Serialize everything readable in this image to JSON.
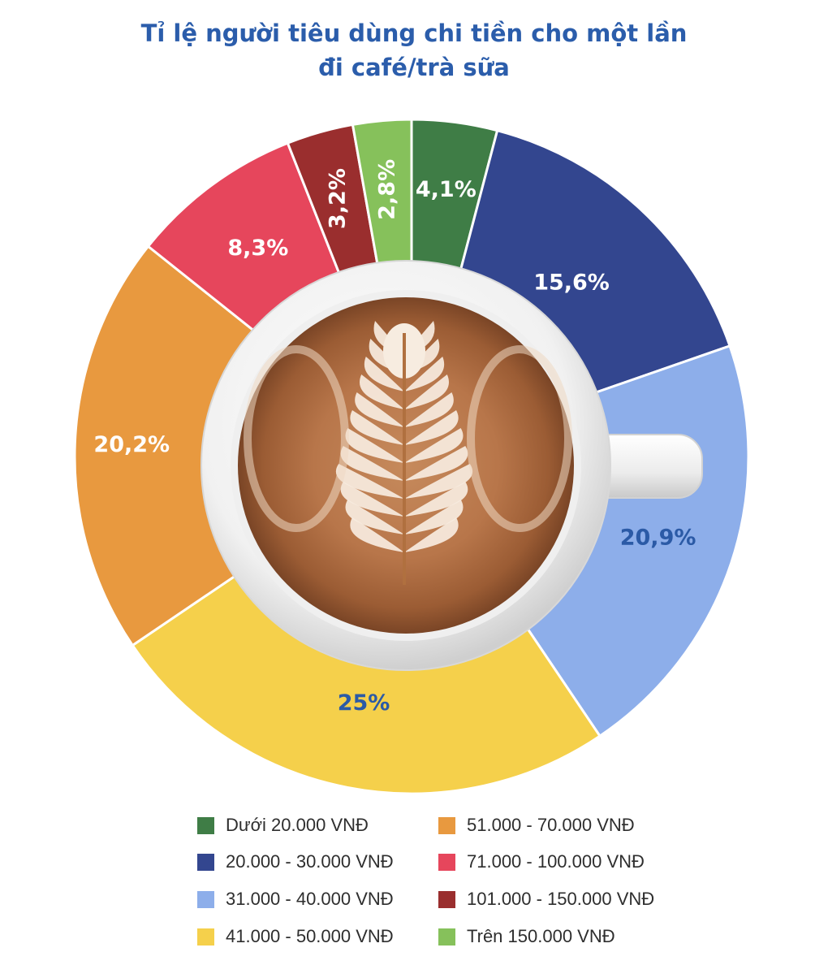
{
  "title": {
    "line1": "Tỉ lệ người tiêu dùng chi tiền cho một lần",
    "line2": "đi café/trà sữa"
  },
  "chart_data": {
    "type": "pie",
    "title": "Tỉ lệ người tiêu dùng chi tiền cho một lần đi café/trà sữa",
    "center_image": "latte-art-coffee-cup",
    "slices": [
      {
        "category": "Dưới 20.000 VNĐ",
        "value": 4.1,
        "label": "4,1%",
        "color": "#3f7d46",
        "label_color": "#ffffff"
      },
      {
        "category": "20.000 - 30.000 VNĐ",
        "value": 15.6,
        "label": "15,6%",
        "color": "#33468f",
        "label_color": "#ffffff"
      },
      {
        "category": "31.000 - 40.000 VNĐ",
        "value": 20.9,
        "label": "20,9%",
        "color": "#8daeea",
        "label_color": "#2b5aa6"
      },
      {
        "category": "41.000 - 50.000 VNĐ",
        "value": 25,
        "label": "25%",
        "color": "#f5d04b",
        "label_color": "#2b5aa6"
      },
      {
        "category": "51.000 - 70.000 VNĐ",
        "value": 20.2,
        "label": "20,2%",
        "color": "#e8993f",
        "label_color": "#ffffff"
      },
      {
        "category": "71.000 - 100.000 VNĐ",
        "value": 8.3,
        "label": "8,3%",
        "color": "#e6465c",
        "label_color": "#ffffff"
      },
      {
        "category": "101.000 - 150.000 VNĐ",
        "value": 3.2,
        "label": "3,2%",
        "color": "#9a2e2e",
        "label_color": "#ffffff"
      },
      {
        "category": "Trên 150.000 VNĐ",
        "value": 2.8,
        "label": "2,8%",
        "color": "#86c15b",
        "label_color": "#ffffff"
      }
    ],
    "legend": {
      "placement": "bottom",
      "columns": 2,
      "items": [
        {
          "label": "Dưới 20.000 VNĐ",
          "color": "#3f7d46"
        },
        {
          "label": "20.000 - 30.000 VNĐ",
          "color": "#33468f"
        },
        {
          "label": "31.000 - 40.000 VNĐ",
          "color": "#8daeea"
        },
        {
          "label": "41.000 - 50.000 VNĐ",
          "color": "#f5d04b"
        },
        {
          "label": "51.000 - 70.000 VNĐ",
          "color": "#e8993f"
        },
        {
          "label": "71.000 - 100.000 VNĐ",
          "color": "#e6465c"
        },
        {
          "label": "101.000 - 150.000 VNĐ",
          "color": "#9a2e2e"
        },
        {
          "label": "Trên 150.000 VNĐ",
          "color": "#86c15b"
        }
      ]
    }
  }
}
